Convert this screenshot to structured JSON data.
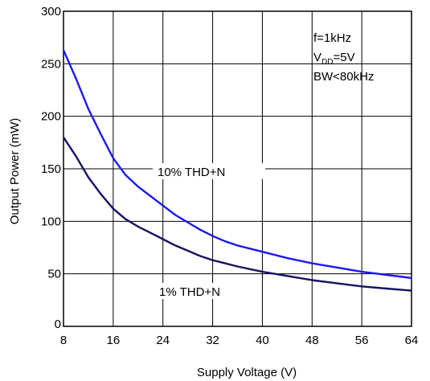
{
  "chart_data": {
    "type": "line",
    "xlabel": "Supply Voltage (V)",
    "ylabel": "Output Power (mW)",
    "xlim": [
      8,
      64
    ],
    "ylim": [
      0,
      300
    ],
    "x_ticks": [
      "8",
      "16",
      "24",
      "32",
      "40",
      "48",
      "56",
      "64"
    ],
    "y_ticks": [
      "0",
      "50",
      "100",
      "150",
      "200",
      "250",
      "300"
    ],
    "grid": true,
    "annotation": {
      "line1": "f=1kHz",
      "line2_prefix": "V",
      "line2_sub": "DD",
      "line2_suffix": "=5V",
      "line3": "BW<80kHz"
    },
    "series": [
      {
        "name": "10% THD+N",
        "color": "#1a1aee",
        "x": [
          8,
          10,
          12,
          14,
          16,
          18,
          20,
          22,
          24,
          26,
          28,
          30,
          32,
          34,
          36,
          40,
          44,
          48,
          52,
          56,
          60,
          64
        ],
        "y": [
          263,
          236,
          207,
          183,
          160,
          144,
          133,
          124,
          115,
          106,
          99,
          92,
          86,
          81,
          77,
          71,
          65,
          60,
          56,
          52,
          49,
          46
        ]
      },
      {
        "name": "1% THD+N",
        "color": "#14145e",
        "x": [
          8,
          10,
          12,
          14,
          16,
          18,
          20,
          22,
          24,
          26,
          28,
          30,
          32,
          34,
          36,
          40,
          44,
          48,
          52,
          56,
          60,
          64
        ],
        "y": [
          180,
          162,
          142,
          126,
          112,
          102,
          95,
          89,
          83,
          77,
          72,
          67,
          63,
          60,
          57,
          52,
          48,
          44,
          41,
          38,
          36,
          34
        ]
      }
    ]
  }
}
